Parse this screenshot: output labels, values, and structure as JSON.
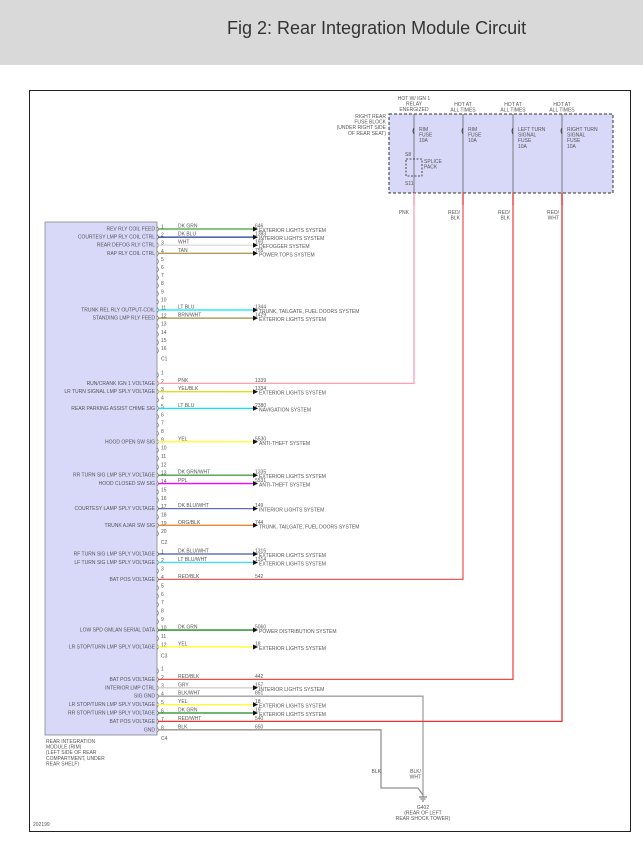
{
  "header": {
    "title": "Fig 2: Rear Integration Module Circuit"
  },
  "figure_id": "202199",
  "fuse_block": {
    "label": [
      "RIGHT REAR",
      "FUSE BLOCK",
      "(UNDER RIGHT SIDE",
      "OF REAR SEAT)"
    ],
    "columns": [
      {
        "heading": [
          "HOT W/ IGN 1",
          "RELAY",
          "ENERGIZED"
        ],
        "fuse": [
          "RIM",
          "FUSE",
          "10A"
        ],
        "wire": [
          "PNK"
        ],
        "color": "#ff9fb5"
      },
      {
        "heading": [
          "HOT AT",
          "ALL TIMES"
        ],
        "fuse": [
          "RIM",
          "FUSE",
          "10A"
        ],
        "wire": [
          "RED/",
          "BLK"
        ],
        "color": "#ee4a4a"
      },
      {
        "heading": [
          "HOT AT",
          "ALL TIMES"
        ],
        "fuse": [
          "LEFT TURN",
          "SIGNAL",
          "FUSE",
          "10A"
        ],
        "wire": [
          "RED/",
          "BLK"
        ],
        "color": "#ee4a4a"
      },
      {
        "heading": [
          "HOT AT",
          "ALL TIMES"
        ],
        "fuse": [
          "RIGHT TURN",
          "SIGNAL",
          "FUSE",
          "10A"
        ],
        "wire": [
          "RED/",
          "WHT"
        ],
        "color": "#ee3030"
      }
    ],
    "splice": {
      "label": [
        "SPLICE",
        "PACK"
      ],
      "top": "S8",
      "bottom": "S11"
    }
  },
  "module": {
    "label": [
      "REAR INTEGRATION",
      "MODULE (RIM)",
      "(LEFT SIDE OF REAR",
      "COMPARTMENT, UNDER",
      "REAR SHELF)"
    ]
  },
  "connectors": [
    {
      "name": "C1",
      "pin_count": 16,
      "pins": [
        {
          "pin": 1,
          "signal": "REV RLY COIL FEED",
          "wire": "DK GRN",
          "circuit": "646",
          "dest": "EXTERIOR LIGHTS SYSTEM",
          "color": "#3aa03a"
        },
        {
          "pin": 2,
          "signal": "COURTESY LMP RLY COIL CTRL",
          "wire": "DK BLU",
          "circuit": "1383",
          "dest": "INTERIOR LIGHTS SYSTEM",
          "color": "#1a3a9a"
        },
        {
          "pin": 3,
          "signal": "REAR DEFOG RLY CTRL",
          "wire": "WHT",
          "circuit": "193",
          "dest": "DEFOGGER SYSTEM",
          "color": "#dcdcdc"
        },
        {
          "pin": 4,
          "signal": "RAP RLY COIL CTRL",
          "wire": "TAN",
          "circuit": "755",
          "dest": "POWER TOPS SYSTEM",
          "color": "#b39a55"
        },
        {
          "pin": 11,
          "signal": "TRUNK REL RLY OUTPUT-COIL",
          "wire": "LT BLU",
          "circuit": "1344",
          "dest": "TRUNK, TAILGATE, FUEL DOORS SYSTEM",
          "color": "#00e8ff"
        },
        {
          "pin": 12,
          "signal": "STANDING LMP RLY FEED",
          "wire": "BRN/WHT",
          "circuit": "1429",
          "dest": "EXTERIOR LIGHTS SYSTEM",
          "color": "#a58a45"
        }
      ]
    },
    {
      "name": "C2",
      "pin_count": 20,
      "pins": [
        {
          "pin": 2,
          "signal": "RUN/CRANK IGN 1 VOLTAGE",
          "wire": "PNK",
          "circuit": "1339",
          "dest": "",
          "color": "#ff9fb5"
        },
        {
          "pin": 3,
          "signal": "LR TURN SIGNAL LMP SPLY VOLTAGE",
          "wire": "YEL/BLK",
          "circuit": "1334",
          "dest": "EXTERIOR LIGHTS SYSTEM",
          "color": "#dede20"
        },
        {
          "pin": 5,
          "signal": "REAR PARKING ASSIST CHIME SIG",
          "wire": "LT BLU",
          "circuit": "2380",
          "dest": "NAVIGATION SYSTEM",
          "color": "#00e8ff"
        },
        {
          "pin": 9,
          "signal": "HOOD OPEN SW SIG",
          "wire": "YEL",
          "circuit": "5530",
          "dest": "ANTI-THEFT SYSTEM",
          "color": "#ffff30"
        },
        {
          "pin": 13,
          "signal": "RR TURN SIG LMP SPLY VOLTAGE",
          "wire": "DK GRN/WHT",
          "circuit": "1335",
          "dest": "EXTERIOR LIGHTS SYSTEM",
          "color": "#48a048"
        },
        {
          "pin": 14,
          "signal": "HOOD CLOSED SW SIG",
          "wire": "PPL",
          "circuit": "5531",
          "dest": "ANTI-THEFT SYSTEM",
          "color": "#ff00ff"
        },
        {
          "pin": 17,
          "signal": "COURTESY LAMP SPLY VOLTAGE",
          "wire": "DK BLU/WHT",
          "circuit": "149",
          "dest": "INTERIOR LIGHTS SYSTEM",
          "color": "#6070b0"
        },
        {
          "pin": 19,
          "signal": "TRUNK AJAR SW SIG",
          "wire": "ORG/BLK",
          "circuit": "744",
          "dest": "TRUNK, TAILGATE, FUEL DOORS SYSTEM",
          "color": "#ee8530"
        }
      ]
    },
    {
      "name": "C3",
      "pin_count": 12,
      "pins": [
        {
          "pin": 1,
          "signal": "RF TURN SIG LMP SPLY VOLTAGE",
          "wire": "DK BLU/WHT",
          "circuit": "1315",
          "dest": "EXTERIOR LIGHTS SYSTEM",
          "color": "#4a5aa8"
        },
        {
          "pin": 2,
          "signal": "LF TURN SIG LMP SPLY VOLTAGE",
          "wire": "LT BLU/WHT",
          "circuit": "1314",
          "dest": "EXTERIOR LIGHTS SYSTEM",
          "color": "#40e0f0"
        },
        {
          "pin": 4,
          "signal": "BAT POS VOLTAGE",
          "wire": "RED/BLK",
          "circuit": "542",
          "dest": "",
          "color": "#ee5a5a"
        },
        {
          "pin": 10,
          "signal": "LOW SPD GMLAN SERIAL DATA",
          "wire": "DK GRN",
          "circuit": "5060",
          "dest": "POWER DISTRIBUTION SYSTEM",
          "color": "#1a8a1a"
        },
        {
          "pin": 12,
          "signal": "LR STOP/TURN LMP SPLY VOLTAGE",
          "wire": "YEL",
          "circuit": "18",
          "dest": "EXTERIOR LIGHTS SYSTEM",
          "color": "#ffff30"
        }
      ]
    },
    {
      "name": "C4",
      "pin_count": 8,
      "pins": [
        {
          "pin": 2,
          "signal": "BAT POS VOLTAGE",
          "wire": "RED/BLK",
          "circuit": "442",
          "dest": "",
          "color": "#ee4a4a"
        },
        {
          "pin": 3,
          "signal": "INTERIOR LMP CTRL",
          "wire": "GRY",
          "circuit": "157",
          "dest": "INTERIOR LIGHTS SYSTEM",
          "color": "#d0d0d0"
        },
        {
          "pin": 4,
          "signal": "SIG GND",
          "wire": "BLK/WHT",
          "circuit": "851",
          "dest": "",
          "color": "#a0a0a0"
        },
        {
          "pin": 5,
          "signal": "LR STOP/TURN LMP SPLY VOLTAGE",
          "wire": "YEL",
          "circuit": "18",
          "dest": "EXTERIOR LIGHTS SYSTEM",
          "color": "#ffff30"
        },
        {
          "pin": 6,
          "signal": "RR STOP/TURN LMP SPLY VOLTAGE",
          "wire": "DK GRN",
          "circuit": "19",
          "dest": "EXTERIOR LIGHTS SYSTEM",
          "color": "#1a8a1a"
        },
        {
          "pin": 7,
          "signal": "BAT POS VOLTAGE",
          "wire": "RED/WHT",
          "circuit": "540",
          "dest": "",
          "color": "#ee3030"
        },
        {
          "pin": 8,
          "signal": "GND",
          "wire": "BLK",
          "circuit": "650",
          "dest": "",
          "color": "#909090"
        }
      ]
    }
  ],
  "ground": {
    "wire_labels": [
      [
        "BLK"
      ],
      [
        "BLK/",
        "WHT"
      ]
    ],
    "label": [
      "G402",
      "(REAR OF LEFT",
      "REAR SHOCK TOWER)"
    ]
  }
}
